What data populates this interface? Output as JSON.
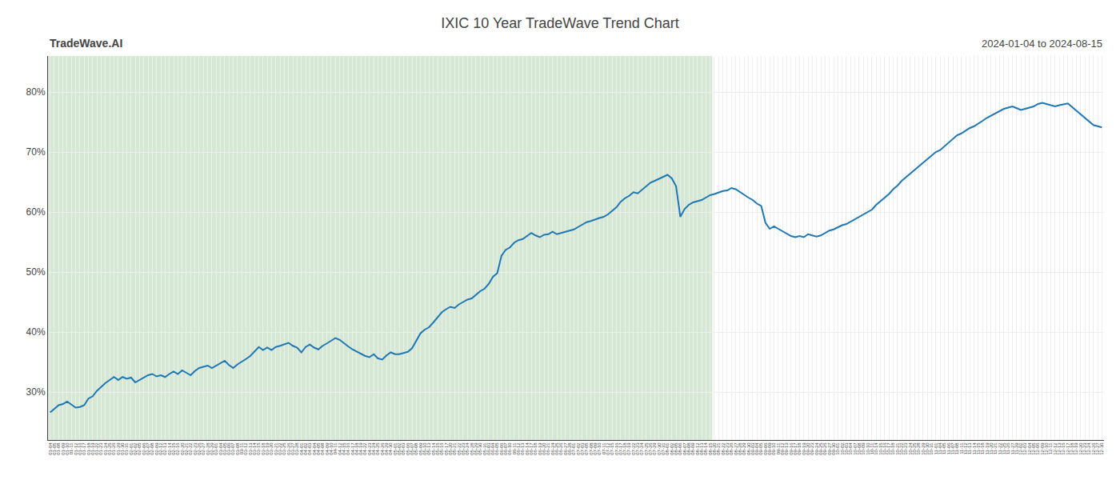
{
  "chart_data": {
    "type": "line",
    "title": "IXIC 10 Year TradeWave Trend Chart",
    "subtitle": "2024-01-04 to 2024-08-15",
    "annotations": [
      "TradeWave.AI"
    ],
    "categories": [
      "01-04",
      "01-05",
      "01-08",
      "01-09",
      "01-10",
      "01-11",
      "01-12",
      "01-16",
      "01-17",
      "01-18",
      "01-19",
      "01-22",
      "01-23",
      "01-24",
      "01-25",
      "01-26",
      "01-29",
      "01-30",
      "01-31",
      "02-01",
      "02-02",
      "02-05",
      "02-06",
      "02-07",
      "02-08",
      "02-09",
      "02-12",
      "02-13",
      "02-14",
      "02-15",
      "02-16",
      "02-20",
      "02-21",
      "02-22",
      "02-23",
      "02-26",
      "02-27",
      "02-28",
      "02-29",
      "03-01",
      "03-04",
      "03-05",
      "03-06",
      "03-07",
      "03-08",
      "03-11",
      "03-12",
      "03-13",
      "03-14",
      "03-15",
      "03-18",
      "03-19",
      "03-20",
      "03-21",
      "03-22",
      "03-25",
      "03-26",
      "03-27",
      "03-28",
      "04-01",
      "04-02",
      "04-03",
      "04-04",
      "04-05",
      "04-08",
      "04-09",
      "04-10",
      "04-11",
      "04-12",
      "04-15",
      "04-16",
      "04-17",
      "04-18",
      "04-19",
      "04-22",
      "04-23",
      "04-24",
      "04-25",
      "04-26",
      "04-29",
      "04-30",
      "05-01",
      "05-02",
      "05-03",
      "05-06",
      "05-07",
      "05-08",
      "05-09",
      "05-10",
      "05-13",
      "05-14",
      "05-15",
      "05-16",
      "05-17",
      "05-20",
      "05-21",
      "05-22",
      "05-23",
      "05-24",
      "05-28",
      "05-29",
      "05-30",
      "05-31",
      "06-03",
      "06-04",
      "06-05",
      "06-06",
      "06-07",
      "06-10",
      "06-11",
      "06-12",
      "06-13",
      "06-14",
      "06-17",
      "06-18",
      "06-19",
      "06-20",
      "06-21",
      "06-24",
      "06-25",
      "06-26",
      "06-27",
      "06-28",
      "07-01",
      "07-02",
      "07-03",
      "07-05",
      "07-08",
      "07-09",
      "07-10",
      "07-11",
      "07-12",
      "07-15",
      "07-16",
      "07-17",
      "07-18",
      "07-19",
      "07-22",
      "07-23",
      "07-24",
      "07-25",
      "07-26",
      "07-29",
      "07-30",
      "07-31",
      "08-01",
      "08-02",
      "08-05",
      "08-06",
      "08-07",
      "08-08",
      "08-09",
      "08-12",
      "08-13",
      "08-14",
      "08-15",
      "08-20",
      "08-21",
      "08-22",
      "08-23",
      "08-26",
      "08-27",
      "08-28",
      "08-29",
      "08-30",
      "09-03",
      "09-04",
      "09-05",
      "09-06",
      "09-09",
      "09-10",
      "09-11",
      "09-12",
      "09-13",
      "09-16",
      "09-17",
      "09-18",
      "09-19",
      "09-20",
      "09-23",
      "09-24",
      "09-25",
      "09-26",
      "09-27",
      "09-30",
      "10-01",
      "10-02",
      "10-03",
      "10-04",
      "10-07",
      "10-08",
      "10-09",
      "10-10",
      "10-11",
      "10-14",
      "10-15",
      "10-16",
      "10-17",
      "10-18",
      "10-21",
      "10-22",
      "10-23",
      "10-24",
      "10-25",
      "10-28",
      "10-29",
      "10-30",
      "10-31",
      "11-01",
      "11-04",
      "11-05",
      "11-06",
      "11-07",
      "11-08",
      "11-11",
      "11-12",
      "11-13",
      "11-14",
      "11-15",
      "11-18",
      "11-19",
      "11-20",
      "11-21",
      "11-22",
      "11-25",
      "11-26",
      "11-27",
      "11-29",
      "12-02",
      "12-03",
      "12-04",
      "12-05",
      "12-06",
      "12-09",
      "12-10",
      "12-11",
      "12-12",
      "12-13",
      "12-16",
      "12-17",
      "12-18",
      "12-19",
      "12-20",
      "12-23",
      "12-24",
      "12-26",
      "12-27",
      "12-30"
    ],
    "values": [
      0.266,
      0.272,
      0.278,
      0.28,
      0.284,
      0.279,
      0.274,
      0.275,
      0.278,
      0.289,
      0.293,
      0.302,
      0.309,
      0.315,
      0.32,
      0.325,
      0.32,
      0.325,
      0.322,
      0.324,
      0.316,
      0.32,
      0.325,
      0.328,
      0.33,
      0.326,
      0.328,
      0.325,
      0.33,
      0.334,
      0.33,
      0.336,
      0.332,
      0.328,
      0.335,
      0.34,
      0.342,
      0.344,
      0.34,
      0.344,
      0.348,
      0.352,
      0.345,
      0.34,
      0.346,
      0.35,
      0.355,
      0.36,
      0.368,
      0.375,
      0.37,
      0.374,
      0.37,
      0.375,
      0.377,
      0.379,
      0.382,
      0.377,
      0.374,
      0.366,
      0.375,
      0.379,
      0.374,
      0.371,
      0.377,
      0.381,
      0.386,
      0.39,
      0.387,
      0.381,
      0.376,
      0.371,
      0.367,
      0.364,
      0.36,
      0.358,
      0.363,
      0.356,
      0.354,
      0.361,
      0.366,
      0.363,
      0.363,
      0.365,
      0.367,
      0.373,
      0.386,
      0.398,
      0.404,
      0.408,
      0.416,
      0.425,
      0.433,
      0.438,
      0.442,
      0.44,
      0.446,
      0.45,
      0.454,
      0.456,
      0.462,
      0.468,
      0.472,
      0.48,
      0.492,
      0.498,
      0.527,
      0.537,
      0.541,
      0.549,
      0.553,
      0.555,
      0.56,
      0.565,
      0.561,
      0.558,
      0.562,
      0.563,
      0.567,
      0.563,
      0.565,
      0.567,
      0.569,
      0.571,
      0.575,
      0.579,
      0.583,
      0.585,
      0.588,
      0.59,
      0.592,
      0.596,
      0.602,
      0.608,
      0.617,
      0.623,
      0.627,
      0.633,
      0.631,
      0.637,
      0.643,
      0.649,
      0.652,
      0.655,
      0.658,
      0.662,
      0.656,
      0.643,
      0.592,
      0.605,
      0.612,
      0.616,
      0.618,
      0.62,
      0.624,
      0.628,
      0.63,
      0.633,
      0.635,
      0.636,
      0.64,
      0.638,
      0.633,
      0.628,
      0.624,
      0.62,
      0.614,
      0.61,
      0.582,
      0.572,
      0.576,
      0.572,
      0.568,
      0.564,
      0.56,
      0.558,
      0.56,
      0.558,
      0.563,
      0.561,
      0.559,
      0.561,
      0.565,
      0.569,
      0.571,
      0.575,
      0.578,
      0.58,
      0.584,
      0.588,
      0.592,
      0.596,
      0.6,
      0.604,
      0.612,
      0.618,
      0.625,
      0.63,
      0.638,
      0.644,
      0.652,
      0.658,
      0.664,
      0.67,
      0.676,
      0.682,
      0.688,
      0.694,
      0.7,
      0.703,
      0.709,
      0.716,
      0.722,
      0.728,
      0.731,
      0.736,
      0.74,
      0.743,
      0.747,
      0.752,
      0.757,
      0.761,
      0.765,
      0.769,
      0.772,
      0.774,
      0.776,
      0.773,
      0.77,
      0.772,
      0.774,
      0.776,
      0.78,
      0.782,
      0.78,
      0.778,
      0.776,
      0.778,
      0.78,
      0.781,
      0.775,
      0.769,
      0.763,
      0.757,
      0.751,
      0.745,
      0.743,
      0.741
    ],
    "shaded_region": {
      "from": "01-04",
      "to": "08-15",
      "color": "#d4e8d4"
    },
    "ylim": [
      0.22,
      0.86
    ],
    "yticks": [
      {
        "value": 0.3,
        "label": "30%"
      },
      {
        "value": 0.4,
        "label": "40%"
      },
      {
        "value": 0.5,
        "label": "50%"
      },
      {
        "value": 0.6,
        "label": "60%"
      },
      {
        "value": 0.7,
        "label": "70%"
      },
      {
        "value": 0.8,
        "label": "80%"
      }
    ],
    "grid": true
  }
}
